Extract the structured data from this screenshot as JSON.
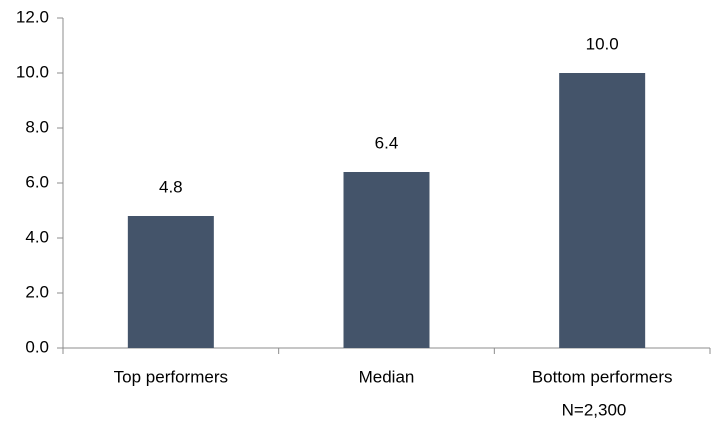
{
  "chart_data": {
    "type": "bar",
    "categories": [
      "Top performers",
      "Median",
      "Bottom performers"
    ],
    "values": [
      4.8,
      6.4,
      10.0
    ],
    "value_labels": [
      "4.8",
      "6.4",
      "10.0"
    ],
    "color": "#44546a",
    "ylim": [
      0,
      12
    ],
    "yticks": [
      {
        "value": 0,
        "label": "0.0"
      },
      {
        "value": 2,
        "label": "2.0"
      },
      {
        "value": 4,
        "label": "4.0"
      },
      {
        "value": 6,
        "label": "6.0"
      },
      {
        "value": 8,
        "label": "8.0"
      },
      {
        "value": 10,
        "label": "10.0"
      },
      {
        "value": 12,
        "label": "12.0"
      }
    ],
    "annotation": "N=2,300"
  }
}
